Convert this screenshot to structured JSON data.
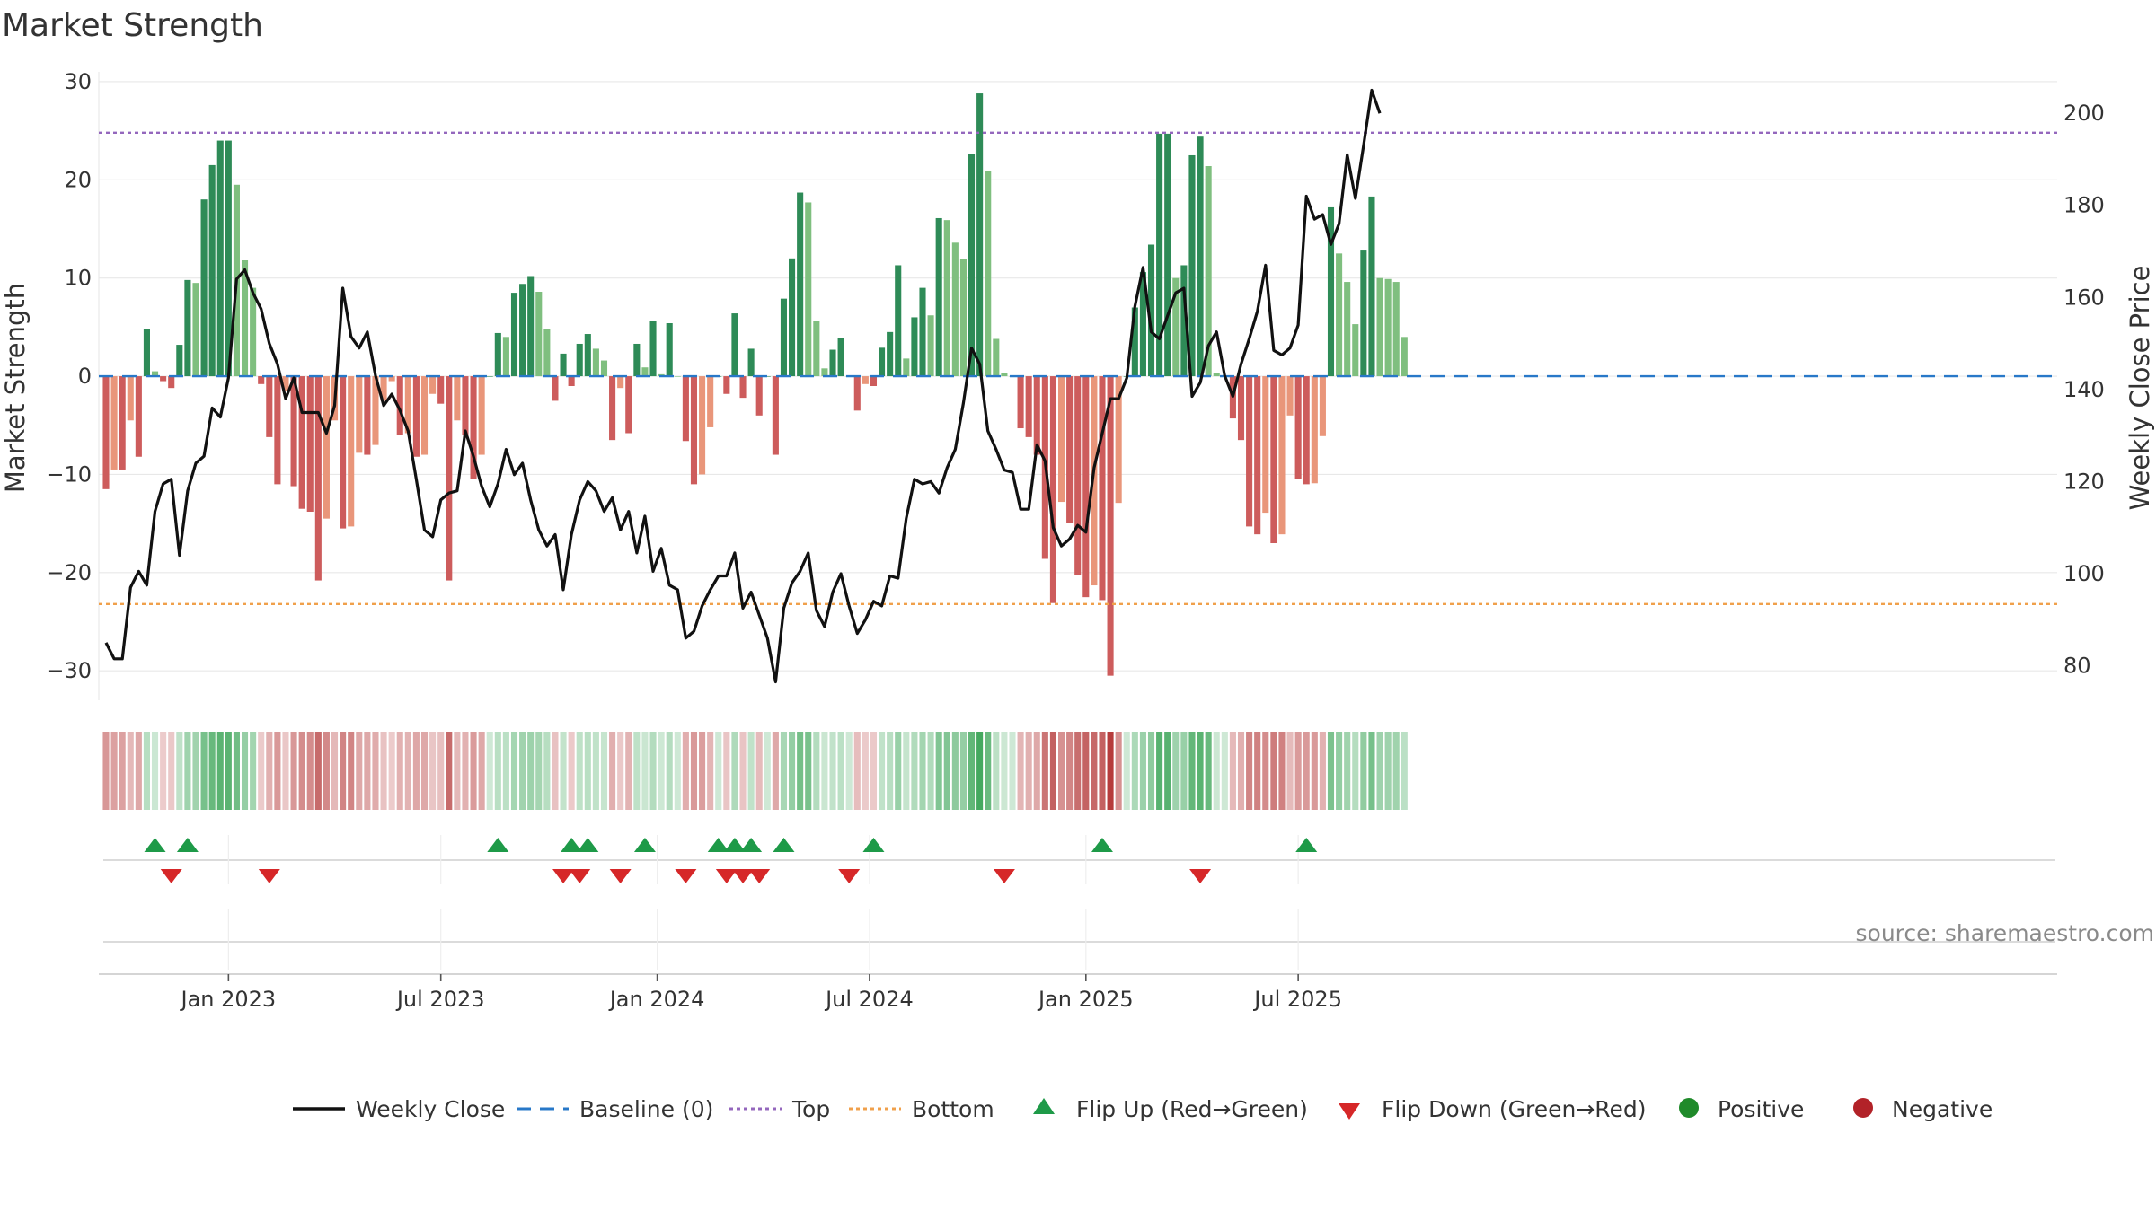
{
  "chart_data": {
    "type": "bar",
    "title": "Market Strength",
    "ylabel_left": "Market Strength",
    "ylabel_right": "Weekly Close Price",
    "y_left_range": [
      -33,
      31
    ],
    "y_left_ticks": [
      "30",
      "20",
      "10",
      "0",
      "−10",
      "−20",
      "−30"
    ],
    "y_left_tick_values": [
      30,
      20,
      10,
      0,
      -10,
      -20,
      -30
    ],
    "y_right_range": [
      72.5,
      209
    ],
    "y_right_ticks": [
      "200",
      "180",
      "160",
      "140",
      "120",
      "100",
      "80"
    ],
    "y_right_tick_values": [
      200,
      180,
      160,
      140,
      120,
      100,
      80
    ],
    "x_ticks": [
      "Jan 2023",
      "Jul 2023",
      "Jan 2024",
      "Jul 2024",
      "Jan 2025",
      "Jul 2025"
    ],
    "x_tick_weeks": [
      15,
      41,
      67.5,
      93.5,
      120,
      146
    ],
    "top_level": 24.8,
    "bottom_level": -23.2,
    "baseline": 0,
    "strength": [
      -11.5,
      -9.5,
      -9.5,
      -4.5,
      -8.2,
      4.8,
      0.5,
      -0.5,
      -1.2,
      3.2,
      9.8,
      9.5,
      18,
      21.5,
      24,
      24,
      19.5,
      11.8,
      9,
      -0.8,
      -6.2,
      -11,
      -1.5,
      -11.2,
      -13.5,
      -13.8,
      -20.8,
      -14.5,
      -4.5,
      -15.5,
      -15.3,
      -7.8,
      -8,
      -7,
      -2.5,
      -0.5,
      -6,
      -5.8,
      -8.2,
      -8,
      -1.8,
      -2.8,
      -20.8,
      -4.5,
      -6,
      -10.5,
      -8,
      0,
      4.4,
      4,
      8.5,
      9.4,
      10.2,
      8.6,
      4.8,
      -2.5,
      2.3,
      -1,
      3.3,
      4.3,
      2.8,
      1.6,
      -6.5,
      -1.2,
      -5.8,
      3.3,
      0.9,
      5.6,
      0.2,
      5.4,
      0,
      -6.6,
      -11,
      -10,
      -5.2,
      0,
      -1.8,
      6.4,
      -2.2,
      2.8,
      -4,
      0,
      -8,
      7.9,
      12,
      18.7,
      17.7,
      5.6,
      0.8,
      2.7,
      3.9,
      0,
      -3.5,
      -0.8,
      -1,
      2.9,
      4.5,
      11.3,
      1.8,
      6,
      9,
      6.2,
      16.1,
      15.9,
      13.6,
      11.9,
      22.6,
      28.8,
      20.9,
      3.8,
      0.3,
      0,
      -5.3,
      -6.2,
      -8,
      -18.6,
      -23.1,
      -12.8,
      -14.9,
      -20.2,
      -22.5,
      -21.3,
      -22.8,
      -30.5,
      -12.9,
      0,
      7,
      10.6,
      13.4,
      24.7,
      24.7,
      10,
      11.3,
      22.5,
      24.4,
      21.4,
      0.3,
      0,
      -4.3,
      -6.5,
      -15.3,
      -16.1,
      -13.9,
      -17,
      -16.1,
      -4,
      -10.5,
      -11,
      -10.9,
      -6.1,
      17.2,
      12.5,
      9.6,
      5.3,
      12.8,
      18.3,
      10,
      9.9,
      9.6,
      4
    ],
    "weekly_close": [
      85,
      81.5,
      81.5,
      97,
      100.5,
      97.5,
      113.5,
      119.5,
      120.5,
      104,
      118,
      124,
      125.5,
      136,
      134,
      142.5,
      164,
      166,
      161,
      157.5,
      150,
      145.5,
      138,
      142.5,
      135,
      135,
      135,
      130.5,
      136.5,
      162,
      151.5,
      149,
      152.5,
      143,
      136.5,
      139,
      135.5,
      131,
      120.5,
      109.5,
      108,
      116,
      117.5,
      118,
      131,
      125.5,
      119,
      114.5,
      119.5,
      127,
      121.5,
      124,
      116,
      109.5,
      106,
      108.5,
      96.5,
      108.5,
      116,
      120,
      118,
      113.5,
      116.5,
      109.5,
      113.5,
      104.5,
      112.5,
      100.5,
      105.5,
      97.5,
      96.5,
      86,
      87.5,
      93,
      96.5,
      99.5,
      99.5,
      104.5,
      92.5,
      96,
      91,
      86,
      76.5,
      92.5,
      98,
      100.5,
      104.5,
      92,
      88.5,
      96,
      100,
      93,
      87,
      90,
      94,
      93,
      99.5,
      99,
      112,
      120.5,
      119.5,
      120,
      117.5,
      123,
      127,
      137,
      149,
      145.5,
      131,
      127,
      122.5,
      122,
      114,
      114,
      128,
      124.5,
      110,
      106,
      107.5,
      110.5,
      109,
      123,
      130.5,
      138,
      138,
      142.5,
      158,
      166.5,
      152.5,
      151,
      156,
      161,
      162,
      138.5,
      141.5,
      149.5,
      152.5,
      143,
      138.5,
      145.5,
      151,
      157,
      167,
      148.5,
      147.5,
      149,
      154,
      182,
      177,
      178,
      171.5,
      176,
      191,
      181.5,
      193,
      205,
      200
    ],
    "flip_up_weeks": [
      6,
      10,
      48,
      57,
      59,
      66,
      75,
      77,
      79,
      83,
      94,
      122,
      147
    ],
    "flip_down_weeks": [
      8,
      20,
      56,
      58,
      63,
      71,
      76,
      78,
      80,
      91,
      110,
      134
    ],
    "legend": [
      {
        "label": "Weekly Close",
        "style": "line",
        "color": "#111111"
      },
      {
        "label": "Baseline (0)",
        "style": "dash",
        "color": "#2878c8"
      },
      {
        "label": "Top",
        "style": "dot",
        "color": "#9467bd"
      },
      {
        "label": "Bottom",
        "style": "dot",
        "color": "#f0a04b"
      },
      {
        "label": "Flip Up (Red→Green)",
        "style": "triangle-up",
        "color": "#1e9a48"
      },
      {
        "label": "Flip Down (Green→Red)",
        "style": "triangle-down",
        "color": "#d62728"
      },
      {
        "label": "Positive",
        "style": "circle",
        "color": "#1f8a2a"
      },
      {
        "label": "Negative",
        "style": "circle",
        "color": "#b22228"
      }
    ],
    "source_text": "source: sharemaestro.com",
    "colors": {
      "pos_rising": "#2e8b57",
      "pos_falling": "#7fbf7f",
      "neg_falling": "#cd5c5c",
      "neg_rising": "#e9967a",
      "grid": "#e8e8e8",
      "axis": "#cfcfcf"
    }
  }
}
